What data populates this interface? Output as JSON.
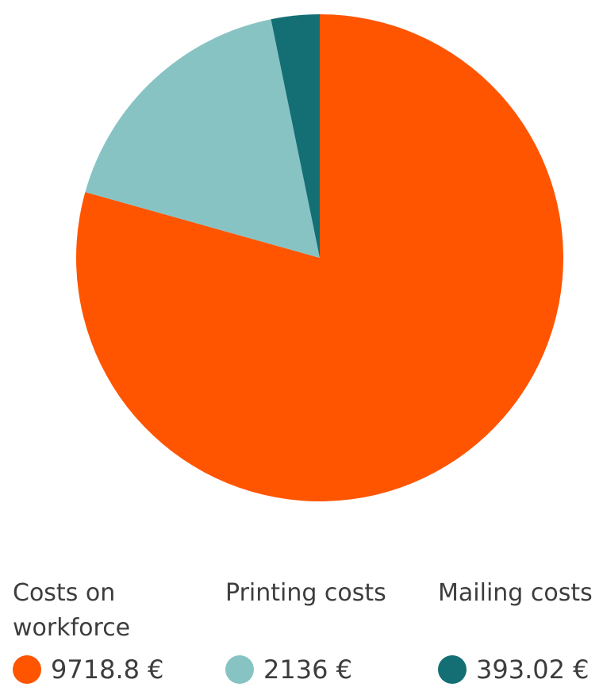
{
  "chart_data": {
    "type": "pie",
    "categories": [
      "Costs on workforce",
      "Printing costs",
      "Mailing costs"
    ],
    "values": [
      9718.8,
      2136,
      393.02
    ],
    "value_labels": [
      "9718.8 €",
      "2136 €",
      "393.02 €"
    ],
    "colors": [
      "#ff5500",
      "#88c3c4",
      "#136f73"
    ],
    "legend": "bottom"
  }
}
